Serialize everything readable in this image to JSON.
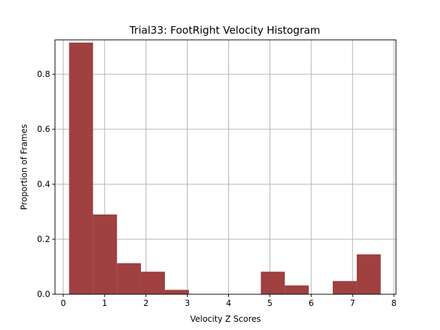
{
  "chart_data": {
    "type": "bar",
    "title": "Trial33: FootRight Velocity Histogram",
    "xlabel": "Velocity Z Scores",
    "ylabel": "Proportion of Frames",
    "xlim": [
      -0.2,
      8.05
    ],
    "ylim": [
      0,
      0.925
    ],
    "xticks": [
      0,
      1,
      2,
      3,
      4,
      5,
      6,
      7,
      8
    ],
    "yticks": [
      0.0,
      0.2,
      0.4,
      0.6,
      0.8
    ],
    "ytick_labels": [
      "0.0",
      "0.2",
      "0.4",
      "0.6",
      "0.8"
    ],
    "grid": true,
    "bar_color": "#a04040",
    "bins": [
      {
        "x0": 0.14,
        "x1": 0.72,
        "value": 0.915
      },
      {
        "x0": 0.72,
        "x1": 1.3,
        "value": 0.29
      },
      {
        "x0": 1.3,
        "x1": 1.88,
        "value": 0.113
      },
      {
        "x0": 1.88,
        "x1": 2.46,
        "value": 0.082
      },
      {
        "x0": 2.46,
        "x1": 3.04,
        "value": 0.016
      },
      {
        "x0": 3.04,
        "x1": 3.62,
        "value": 0.0
      },
      {
        "x0": 3.62,
        "x1": 4.2,
        "value": 0.0
      },
      {
        "x0": 4.2,
        "x1": 4.78,
        "value": 0.0
      },
      {
        "x0": 4.78,
        "x1": 5.36,
        "value": 0.082
      },
      {
        "x0": 5.36,
        "x1": 5.94,
        "value": 0.032
      },
      {
        "x0": 5.94,
        "x1": 6.52,
        "value": 0.0
      },
      {
        "x0": 6.52,
        "x1": 7.1,
        "value": 0.048
      },
      {
        "x0": 7.1,
        "x1": 7.68,
        "value": 0.145
      }
    ]
  }
}
